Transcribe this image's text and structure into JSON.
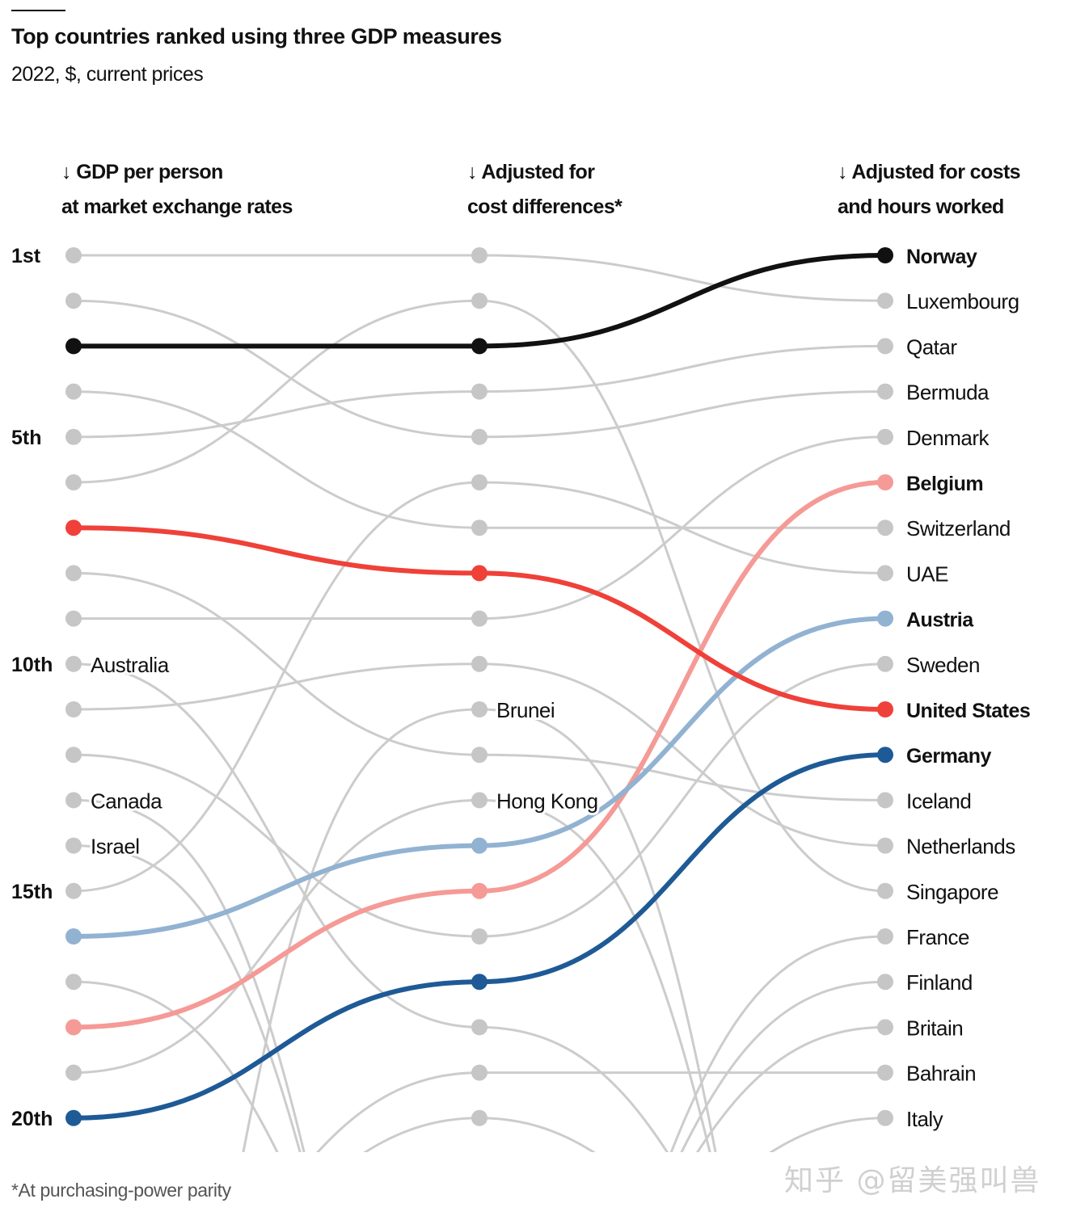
{
  "title": "Top countries ranked using three GDP measures",
  "subtitle": "2022, $, current prices",
  "footnote": "*At purchasing-power parity",
  "watermark": "知乎 @留美强叫兽",
  "chart_data": {
    "type": "slope",
    "title": "Top countries ranked using three GDP measures",
    "subtitle": "2022, $, current prices",
    "columns": [
      {
        "line1": "↓ GDP per person",
        "line2": "at market exchange rates"
      },
      {
        "line1": "↓ Adjusted for",
        "line2": "cost differences*"
      },
      {
        "line1": "↓ Adjusted for costs",
        "line2": "and hours worked"
      }
    ],
    "rank_axis": {
      "min": 1,
      "max": 20,
      "direction": "top-down"
    },
    "rank_labels": [
      {
        "rank": 1,
        "text": "1st"
      },
      {
        "rank": 5,
        "text": "5th"
      },
      {
        "rank": 10,
        "text": "10th"
      },
      {
        "rank": 15,
        "text": "15th"
      },
      {
        "rank": 20,
        "text": "20th"
      }
    ],
    "colors": {
      "gray_line": "#cccccc",
      "gray_dot": "#c6c6c6"
    },
    "countries": [
      {
        "name": "Norway",
        "ranks": [
          3,
          3,
          1
        ],
        "color": "#111111",
        "highlight": true,
        "label_col": 2
      },
      {
        "name": "Luxembourg",
        "ranks": [
          1,
          1,
          2
        ],
        "label_col": 2
      },
      {
        "name": "Qatar",
        "ranks": [
          5,
          4,
          3
        ],
        "label_col": 2
      },
      {
        "name": "Bermuda",
        "ranks": [
          2,
          5,
          4
        ],
        "label_col": 2
      },
      {
        "name": "Denmark",
        "ranks": [
          9,
          9,
          5
        ],
        "label_col": 2
      },
      {
        "name": "Belgium",
        "ranks": [
          18,
          15,
          6
        ],
        "color": "#f59a96",
        "highlight": true,
        "label_col": 2
      },
      {
        "name": "Switzerland",
        "ranks": [
          4,
          7,
          7
        ],
        "label_col": 2
      },
      {
        "name": "UAE",
        "ranks": [
          15,
          6,
          8
        ],
        "label_col": 2
      },
      {
        "name": "Austria",
        "ranks": [
          16,
          14,
          9
        ],
        "color": "#92b2d2",
        "highlight": true,
        "label_col": 2
      },
      {
        "name": "Sweden",
        "ranks": [
          12,
          16,
          10
        ],
        "label_col": 2
      },
      {
        "name": "United States",
        "ranks": [
          7,
          8,
          11
        ],
        "color": "#ef4139",
        "highlight": true,
        "label_col": 2
      },
      {
        "name": "Germany",
        "ranks": [
          20,
          17,
          12
        ],
        "color": "#1e5a96",
        "highlight": true,
        "label_col": 2
      },
      {
        "name": "Iceland",
        "ranks": [
          8,
          12,
          13
        ],
        "label_col": 2
      },
      {
        "name": "Netherlands",
        "ranks": [
          11,
          10,
          14
        ],
        "label_col": 2
      },
      {
        "name": "Singapore",
        "ranks": [
          6,
          2,
          15
        ],
        "label_col": 2
      },
      {
        "name": "France",
        "ranks": [
          null,
          null,
          16
        ],
        "label_col": 2
      },
      {
        "name": "Finland",
        "ranks": [
          null,
          null,
          17
        ],
        "label_col": 2
      },
      {
        "name": "Britain",
        "ranks": [
          null,
          null,
          18
        ],
        "label_col": 2
      },
      {
        "name": "Bahrain",
        "ranks": [
          null,
          19,
          19
        ],
        "label_col": 2
      },
      {
        "name": "Italy",
        "ranks": [
          null,
          null,
          20
        ],
        "label_col": 2
      },
      {
        "name": "Australia",
        "ranks": [
          10,
          18,
          null
        ],
        "label_col": 0
      },
      {
        "name": "Canada",
        "ranks": [
          13,
          null,
          null
        ],
        "label_col": 0
      },
      {
        "name": "Israel",
        "ranks": [
          14,
          null,
          null
        ],
        "label_col": 0
      },
      {
        "name": "Brunei",
        "ranks": [
          null,
          11,
          null
        ],
        "label_col": 1
      },
      {
        "name": "Hong Kong",
        "ranks": [
          19,
          13,
          null
        ],
        "label_col": 1
      },
      {
        "name": "",
        "ranks": [
          17,
          null,
          null
        ]
      },
      {
        "name": "",
        "ranks": [
          null,
          20,
          null
        ]
      }
    ]
  }
}
